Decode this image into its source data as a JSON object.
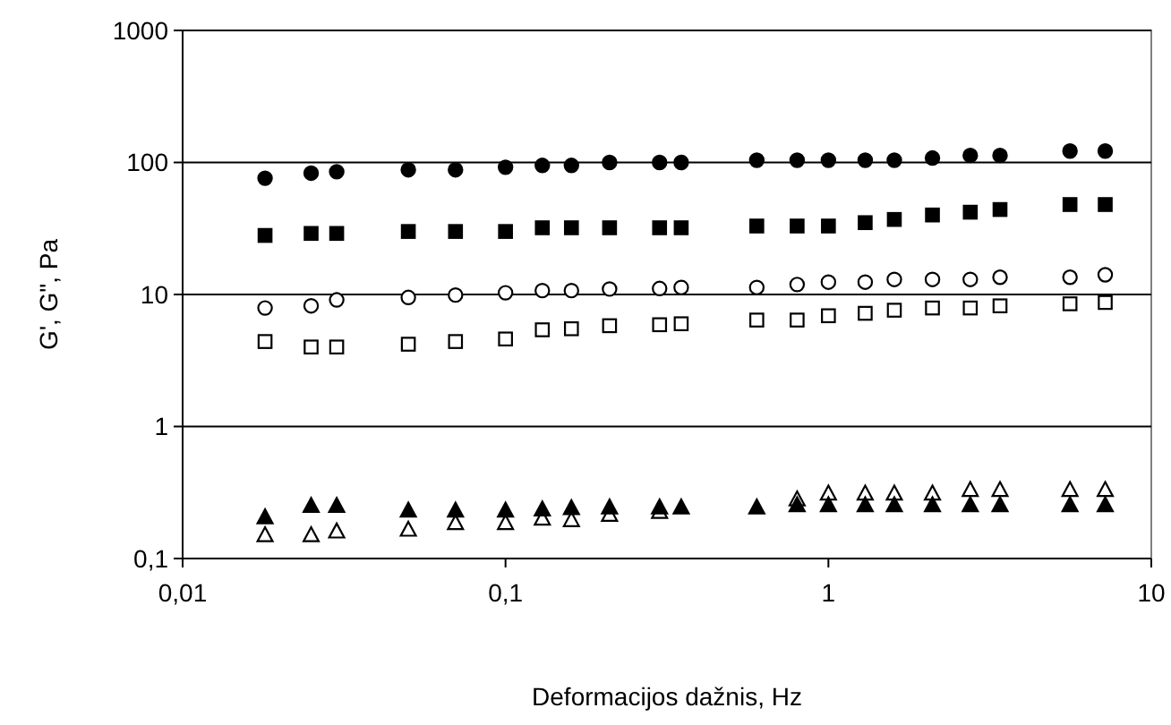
{
  "chart_data": {
    "type": "scatter",
    "xlabel": "Deformacijos dažnis, Hz",
    "ylabel": "G', G\", Pa",
    "log": "xy",
    "grid": "y",
    "x": [
      0.018,
      0.025,
      0.03,
      0.05,
      0.07,
      0.1,
      0.13,
      0.16,
      0.21,
      0.3,
      0.35,
      0.6,
      0.8,
      1,
      1.3,
      1.6,
      2.1,
      2.75,
      3.4,
      5.6,
      7.2
    ],
    "xlim": [
      0.01,
      10
    ],
    "xticks": [
      {
        "value": 0.01,
        "label": "0,01"
      },
      {
        "value": 0.1,
        "label": "0,1"
      },
      1,
      10
    ],
    "ylim": [
      0.1,
      1000
    ],
    "yticks": [
      {
        "value": 0.1,
        "label": "0,1"
      },
      1,
      10,
      100,
      1000
    ],
    "series": [
      {
        "color": "#000000",
        "marker": "circle",
        "values": [
          76,
          83,
          85,
          88,
          88,
          92,
          95,
          95,
          100,
          100,
          100,
          104,
          104,
          104,
          104,
          104,
          108,
          113,
          113,
          122,
          122
        ]
      },
      {
        "color": "#000000",
        "marker": "square",
        "values": [
          28,
          29,
          29,
          30,
          30,
          30,
          32,
          32,
          32,
          32,
          32,
          33,
          33,
          33,
          35,
          37,
          40,
          42,
          44,
          48,
          48
        ]
      },
      {
        "color": "#ffffff",
        "marker": "circle",
        "values": [
          7.9,
          8.2,
          9.1,
          9.5,
          9.9,
          10.3,
          10.7,
          10.7,
          11,
          11.1,
          11.3,
          11.3,
          11.9,
          12.4,
          12.4,
          13,
          13,
          13,
          13.5,
          13.5,
          14.1
        ]
      },
      {
        "color": "#ffffff",
        "marker": "square",
        "values": [
          4.4,
          4,
          4,
          4.2,
          4.4,
          4.6,
          5.4,
          5.5,
          5.8,
          5.9,
          6,
          6.4,
          6.4,
          6.9,
          7.2,
          7.6,
          7.9,
          7.9,
          8.2,
          8.5,
          8.7
        ]
      },
      {
        "color": "#000000",
        "marker": "triangle",
        "values": [
          0.205,
          0.25,
          0.25,
          0.23,
          0.23,
          0.23,
          0.235,
          0.24,
          0.243,
          0.243,
          0.243,
          0.243,
          0.253,
          0.253,
          0.253,
          0.253,
          0.253,
          0.253,
          0.253,
          0.253,
          0.253
        ]
      },
      {
        "color": "#ffffff",
        "marker": "triangle",
        "values": [
          0.15,
          0.15,
          0.16,
          0.165,
          0.185,
          0.185,
          0.2,
          0.195,
          0.214,
          0.225,
          null,
          null,
          0.28,
          0.31,
          0.31,
          0.31,
          0.31,
          0.33,
          0.33,
          0.33,
          0.33
        ]
      }
    ]
  }
}
